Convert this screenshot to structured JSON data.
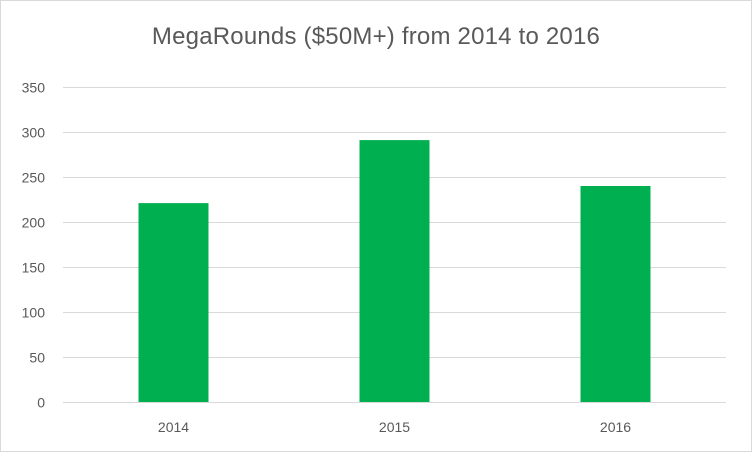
{
  "chart_data": {
    "type": "bar",
    "title": "MegaRounds ($50M+) from 2014 to 2016",
    "xlabel": "",
    "ylabel": "",
    "categories": [
      "2014",
      "2015",
      "2016"
    ],
    "values": [
      221,
      291,
      240
    ],
    "ylim": [
      0,
      350
    ],
    "yticks": [
      0,
      50,
      100,
      150,
      200,
      250,
      300,
      350
    ],
    "grid": true,
    "legend": "none",
    "bar_color": "#00b050",
    "grid_color": "#d9d9d9",
    "text_color": "#595959"
  }
}
